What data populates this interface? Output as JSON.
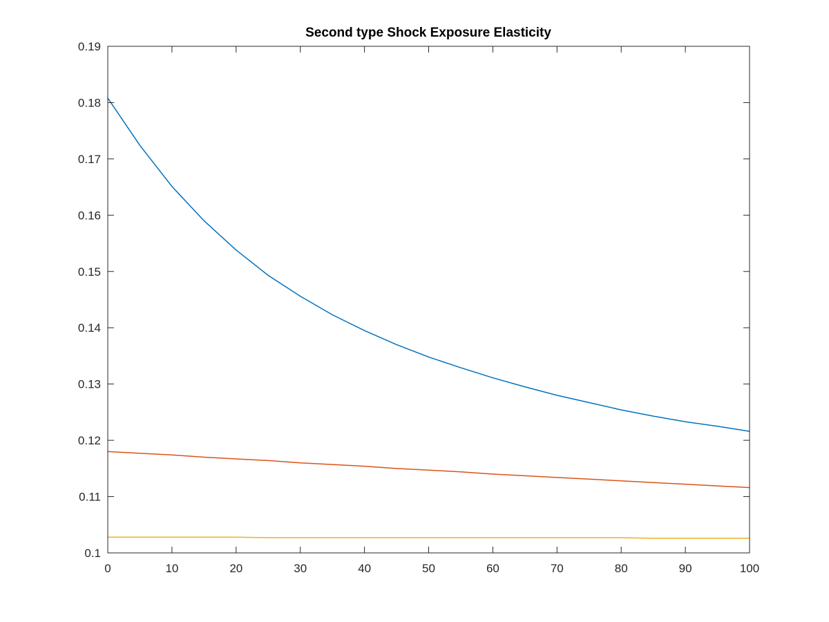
{
  "chart_data": {
    "type": "line",
    "title": "Second type Shock Exposure Elasticity",
    "xlabel": "",
    "ylabel": "",
    "xlim": [
      0,
      100
    ],
    "ylim": [
      0.1,
      0.19
    ],
    "x_ticks": [
      0,
      10,
      20,
      30,
      40,
      50,
      60,
      70,
      80,
      90,
      100
    ],
    "y_ticks": [
      0.1,
      0.11,
      0.12,
      0.13,
      0.14,
      0.15,
      0.16,
      0.17,
      0.18,
      0.19
    ],
    "x_tick_labels": [
      "0",
      "10",
      "20",
      "30",
      "40",
      "50",
      "60",
      "70",
      "80",
      "90",
      "100"
    ],
    "y_tick_labels": [
      "0.1",
      "0.11",
      "0.12",
      "0.13",
      "0.14",
      "0.15",
      "0.16",
      "0.17",
      "0.18",
      "0.19"
    ],
    "grid": false,
    "legend": "none",
    "x": [
      0,
      5,
      10,
      15,
      20,
      25,
      30,
      35,
      40,
      45,
      50,
      55,
      60,
      65,
      70,
      75,
      80,
      85,
      90,
      95,
      100
    ],
    "series": [
      {
        "color": "#0072BD",
        "values": [
          0.1808,
          0.1724,
          0.1651,
          0.159,
          0.1538,
          0.1493,
          0.1456,
          0.1423,
          0.1395,
          0.137,
          0.1348,
          0.1329,
          0.1311,
          0.1295,
          0.128,
          0.1267,
          0.1254,
          0.1243,
          0.1233,
          0.1225,
          0.1216
        ]
      },
      {
        "color": "#D95319",
        "values": [
          0.118,
          0.1177,
          0.1174,
          0.117,
          0.1167,
          0.1164,
          0.116,
          0.1157,
          0.1154,
          0.115,
          0.1147,
          0.1144,
          0.114,
          0.1137,
          0.1134,
          0.1131,
          0.1128,
          0.1125,
          0.1122,
          0.1119,
          0.1116
        ]
      },
      {
        "color": "#EDB120",
        "values": [
          0.1028,
          0.1028,
          0.1028,
          0.1028,
          0.1028,
          0.1027,
          0.1027,
          0.1027,
          0.1027,
          0.1027,
          0.1027,
          0.1027,
          0.1027,
          0.1027,
          0.1027,
          0.1027,
          0.1027,
          0.1026,
          0.1026,
          0.1026,
          0.1026
        ]
      }
    ]
  }
}
